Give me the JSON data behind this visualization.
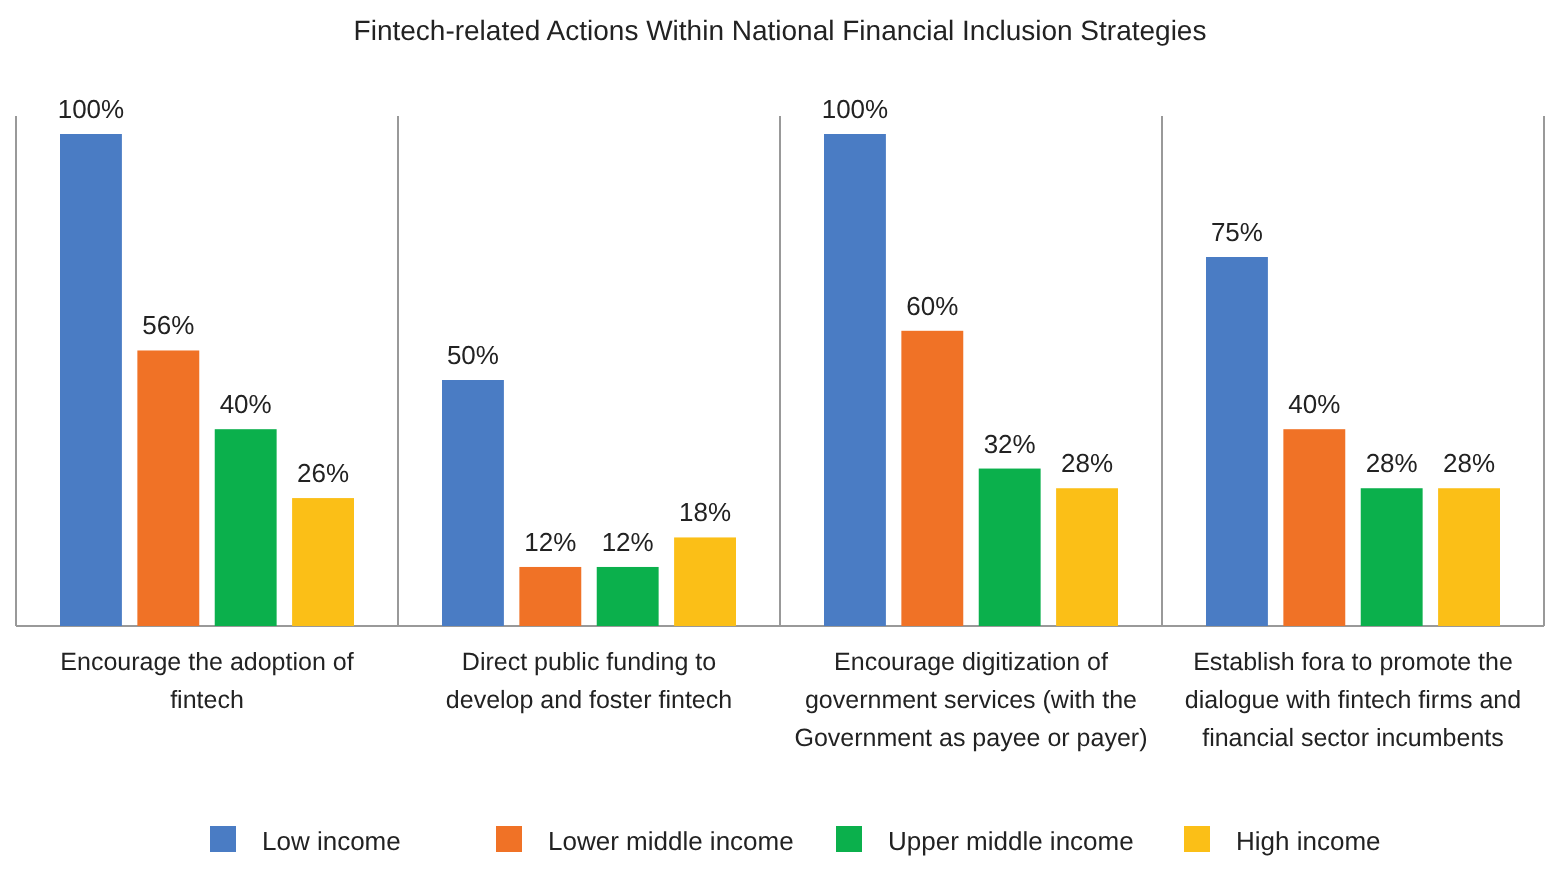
{
  "chart_data": {
    "type": "bar",
    "title": "Fintech-related Actions Within National Financial Inclusion Strategies",
    "categories": [
      "Encourage the adoption of fintech",
      "Direct public funding to develop and foster fintech",
      "Encourage digitization of government services (with the Government as payee or payer)",
      "Establish fora to promote the dialogue with fintech firms and financial sector incumbents"
    ],
    "series": [
      {
        "name": "Low income",
        "color": "#4a7cc4",
        "values": [
          100,
          50,
          100,
          75
        ],
        "value_labels": [
          "100%",
          "50%",
          "100%",
          "75%"
        ]
      },
      {
        "name": "Lower middle income",
        "color": "#f07226",
        "values": [
          56,
          12,
          60,
          40
        ],
        "value_labels": [
          "56%",
          "12%",
          "60%",
          "40%"
        ]
      },
      {
        "name": "Upper middle income",
        "color": "#0bb04c",
        "values": [
          40,
          12,
          32,
          28
        ],
        "value_labels": [
          "40%",
          "12%",
          "32%",
          "28%"
        ]
      },
      {
        "name": "High income",
        "color": "#fbbf17",
        "values": [
          26,
          18,
          28,
          28
        ],
        "value_labels": [
          "26%",
          "18%",
          "28%",
          "28%"
        ]
      }
    ],
    "legend": "bottom",
    "grid": false
  }
}
